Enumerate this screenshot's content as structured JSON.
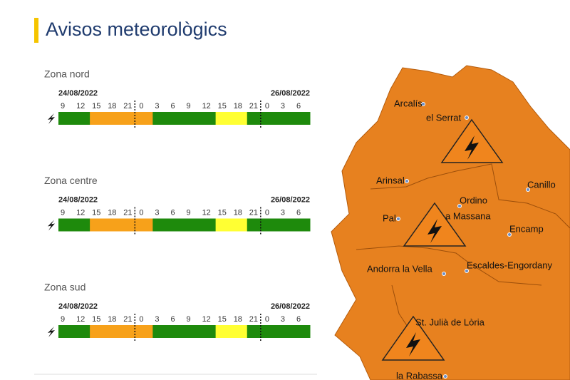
{
  "title": "Avisos meteorològics",
  "zones": [
    {
      "name": "Zona nord",
      "start_date": "24/08/2022",
      "end_date": "26/08/2022",
      "hours": [
        9,
        12,
        15,
        18,
        21,
        0,
        3,
        6,
        9,
        12,
        15,
        18,
        21,
        0,
        3,
        6
      ],
      "slots": [
        "#1e8a0c",
        "#1e8a0c",
        "#f7a11a",
        "#f7a11a",
        "#f7a11a",
        "#f7a11a",
        "#1e8a0c",
        "#1e8a0c",
        "#1e8a0c",
        "#1e8a0c",
        "#ffff33",
        "#ffff33",
        "#1e8a0c",
        "#1e8a0c",
        "#1e8a0c",
        "#1e8a0c"
      ]
    },
    {
      "name": "Zona centre",
      "start_date": "24/08/2022",
      "end_date": "26/08/2022",
      "hours": [
        9,
        12,
        15,
        18,
        21,
        0,
        3,
        6,
        9,
        12,
        15,
        18,
        21,
        0,
        3,
        6
      ],
      "slots": [
        "#1e8a0c",
        "#1e8a0c",
        "#f7a11a",
        "#f7a11a",
        "#f7a11a",
        "#f7a11a",
        "#1e8a0c",
        "#1e8a0c",
        "#1e8a0c",
        "#1e8a0c",
        "#ffff33",
        "#ffff33",
        "#1e8a0c",
        "#1e8a0c",
        "#1e8a0c",
        "#1e8a0c"
      ]
    },
    {
      "name": "Zona sud",
      "start_date": "24/08/2022",
      "end_date": "26/08/2022",
      "hours": [
        9,
        12,
        15,
        18,
        21,
        0,
        3,
        6,
        9,
        12,
        15,
        18,
        21,
        0,
        3,
        6
      ],
      "slots": [
        "#1e8a0c",
        "#1e8a0c",
        "#f7a11a",
        "#f7a11a",
        "#f7a11a",
        "#f7a11a",
        "#1e8a0c",
        "#1e8a0c",
        "#1e8a0c",
        "#1e8a0c",
        "#ffff33",
        "#ffff33",
        "#1e8a0c",
        "#1e8a0c",
        "#1e8a0c",
        "#1e8a0c"
      ]
    }
  ],
  "map": {
    "places": [
      "Arcalís",
      "el Serrat",
      "Arinsal",
      "Canillo",
      "Ordino",
      "Pal",
      "a Massana",
      "Encamp",
      "Andorra la Vella",
      "Escaldes-Engordany",
      "St. Julià de Lòria",
      "la Rabassa"
    ]
  }
}
